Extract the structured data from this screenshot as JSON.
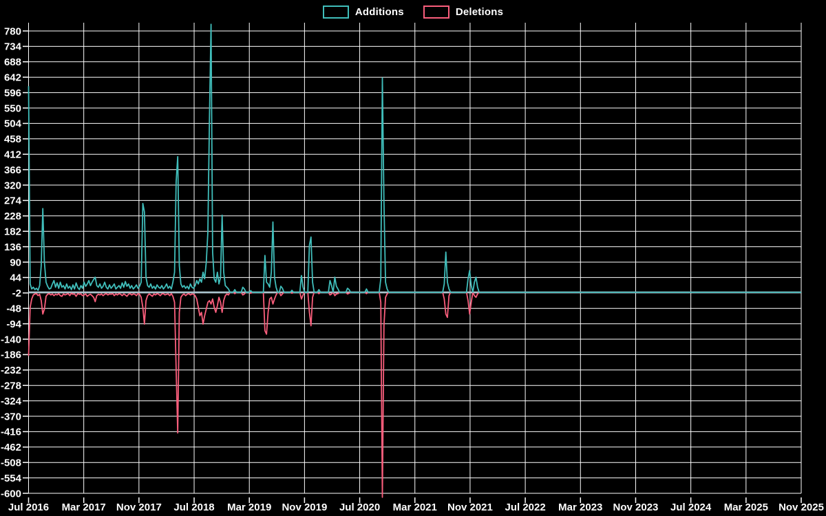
{
  "colors": {
    "background": "#000000",
    "grid": "#ffffff",
    "additions": "#40bebb",
    "deletions": "#fa5e7c",
    "zero_line": "#a9c3cd",
    "text": "#ffffff"
  },
  "legend": {
    "additions_label": "Additions",
    "deletions_label": "Deletions"
  },
  "chart_data": {
    "type": "line",
    "title": "",
    "xlabel": "",
    "ylabel": "",
    "legend_position": "top-center",
    "grid": true,
    "ylim": [
      -612,
      804
    ],
    "y_tick_step": 46,
    "y_ticks": [
      780,
      734,
      688,
      642,
      596,
      550,
      504,
      458,
      412,
      366,
      320,
      274,
      228,
      182,
      136,
      90,
      44,
      -2,
      -48,
      -94,
      -140,
      -186,
      -232,
      -278,
      -324,
      -370,
      -416,
      -462,
      -508,
      -554,
      -600
    ],
    "x_tick_labels": [
      "Jul 2016",
      "Mar 2017",
      "Nov 2017",
      "Jul 2018",
      "Mar 2019",
      "Nov 2019",
      "Jul 2020",
      "Mar 2021",
      "Nov 2021",
      "Jul 2022",
      "Mar 2023",
      "Nov 2023",
      "Jul 2024",
      "Mar 2025",
      "Nov 2025"
    ],
    "x_unit": "weeks since Jul 2016",
    "weeks_total": 488,
    "series": [
      {
        "name": "Additions",
        "color": "#40bebb"
      },
      {
        "name": "Deletions",
        "color": "#fa5e7c"
      }
    ],
    "points_format": "[week_index, additions, deletions]; unlisted weeks are [0,0]; additions clipped at chart top (~800), deletions clipped at chart bottom (~-612)",
    "points": [
      [
        0,
        615,
        -190
      ],
      [
        1,
        25,
        -45
      ],
      [
        2,
        10,
        -20
      ],
      [
        3,
        15,
        -8
      ],
      [
        4,
        8,
        -5
      ],
      [
        5,
        12,
        -4
      ],
      [
        6,
        6,
        -10
      ],
      [
        7,
        20,
        -6
      ],
      [
        8,
        80,
        -25
      ],
      [
        9,
        250,
        -65
      ],
      [
        10,
        90,
        -50
      ],
      [
        11,
        30,
        -12
      ],
      [
        12,
        18,
        -6
      ],
      [
        13,
        10,
        -4
      ],
      [
        14,
        12,
        -8
      ],
      [
        15,
        25,
        -5
      ],
      [
        16,
        35,
        -10
      ],
      [
        17,
        15,
        -6
      ],
      [
        18,
        28,
        -8
      ],
      [
        19,
        12,
        -4
      ],
      [
        20,
        30,
        -10
      ],
      [
        21,
        15,
        -12
      ],
      [
        22,
        20,
        -5
      ],
      [
        23,
        10,
        -8
      ],
      [
        24,
        25,
        -6
      ],
      [
        25,
        12,
        -4
      ],
      [
        26,
        18,
        -10
      ],
      [
        27,
        8,
        -3
      ],
      [
        28,
        22,
        -6
      ],
      [
        29,
        10,
        -5
      ],
      [
        30,
        28,
        -12
      ],
      [
        31,
        14,
        -4
      ],
      [
        32,
        8,
        -6
      ],
      [
        33,
        20,
        -5
      ],
      [
        34,
        12,
        -10
      ],
      [
        35,
        30,
        -8
      ],
      [
        36,
        18,
        -5
      ],
      [
        37,
        25,
        -12
      ],
      [
        38,
        35,
        -8
      ],
      [
        39,
        20,
        -6
      ],
      [
        40,
        30,
        -10
      ],
      [
        41,
        38,
        -15
      ],
      [
        42,
        45,
        -28
      ],
      [
        43,
        20,
        -10
      ],
      [
        44,
        15,
        -6
      ],
      [
        45,
        25,
        -8
      ],
      [
        46,
        12,
        -5
      ],
      [
        47,
        18,
        -10
      ],
      [
        48,
        30,
        -6
      ],
      [
        49,
        15,
        -4
      ],
      [
        50,
        10,
        -8
      ],
      [
        51,
        22,
        -5
      ],
      [
        52,
        12,
        -6
      ],
      [
        53,
        18,
        -4
      ],
      [
        54,
        25,
        -10
      ],
      [
        55,
        10,
        -5
      ],
      [
        56,
        15,
        -8
      ],
      [
        57,
        20,
        -4
      ],
      [
        58,
        12,
        -6
      ],
      [
        59,
        28,
        -10
      ],
      [
        60,
        15,
        -5
      ],
      [
        61,
        32,
        -8
      ],
      [
        62,
        18,
        -12
      ],
      [
        63,
        25,
        -6
      ],
      [
        64,
        12,
        -4
      ],
      [
        65,
        20,
        -8
      ],
      [
        66,
        10,
        -5
      ],
      [
        67,
        15,
        -6
      ],
      [
        68,
        22,
        -10
      ],
      [
        69,
        12,
        -4
      ],
      [
        70,
        18,
        -6
      ],
      [
        71,
        30,
        -15
      ],
      [
        72,
        265,
        -45
      ],
      [
        73,
        240,
        -95
      ],
      [
        74,
        45,
        -25
      ],
      [
        75,
        20,
        -10
      ],
      [
        76,
        15,
        -5
      ],
      [
        77,
        25,
        -8
      ],
      [
        78,
        12,
        -12
      ],
      [
        79,
        18,
        -5
      ],
      [
        80,
        10,
        -8
      ],
      [
        81,
        22,
        -4
      ],
      [
        82,
        15,
        -6
      ],
      [
        83,
        12,
        -10
      ],
      [
        84,
        20,
        -5
      ],
      [
        85,
        10,
        -4
      ],
      [
        86,
        16,
        -8
      ],
      [
        87,
        25,
        -6
      ],
      [
        88,
        12,
        -5
      ],
      [
        89,
        18,
        -10
      ],
      [
        90,
        10,
        -4
      ],
      [
        91,
        30,
        -12
      ],
      [
        92,
        60,
        -30
      ],
      [
        93,
        330,
        -230
      ],
      [
        94,
        405,
        -420
      ],
      [
        95,
        80,
        -60
      ],
      [
        96,
        25,
        -15
      ],
      [
        97,
        15,
        -8
      ],
      [
        98,
        20,
        -5
      ],
      [
        99,
        12,
        -10
      ],
      [
        100,
        18,
        -6
      ],
      [
        101,
        10,
        -4
      ],
      [
        102,
        25,
        -8
      ],
      [
        103,
        15,
        -5
      ],
      [
        104,
        12,
        -6
      ],
      [
        105,
        20,
        -10
      ],
      [
        106,
        35,
        -20
      ],
      [
        107,
        25,
        -45
      ],
      [
        108,
        40,
        -70
      ],
      [
        109,
        30,
        -60
      ],
      [
        110,
        60,
        -95
      ],
      [
        111,
        40,
        -70
      ],
      [
        112,
        90,
        -50
      ],
      [
        113,
        180,
        -30
      ],
      [
        114,
        520,
        -25
      ],
      [
        115,
        800,
        -35
      ],
      [
        116,
        120,
        -20
      ],
      [
        117,
        40,
        -45
      ],
      [
        118,
        30,
        -60
      ],
      [
        119,
        60,
        -40
      ],
      [
        120,
        25,
        -15
      ],
      [
        121,
        45,
        -30
      ],
      [
        122,
        230,
        -60
      ],
      [
        123,
        60,
        -25
      ],
      [
        124,
        20,
        -10
      ],
      [
        125,
        15,
        -5
      ],
      [
        126,
        10,
        -8
      ],
      [
        130,
        8,
        -4
      ],
      [
        135,
        15,
        -8
      ],
      [
        136,
        10,
        -5
      ],
      [
        140,
        5,
        -3
      ],
      [
        149,
        110,
        -115
      ],
      [
        150,
        30,
        -125
      ],
      [
        151,
        25,
        -60
      ],
      [
        152,
        15,
        -20
      ],
      [
        153,
        60,
        -15
      ],
      [
        154,
        210,
        -35
      ],
      [
        155,
        45,
        -20
      ],
      [
        156,
        15,
        -8
      ],
      [
        159,
        18,
        -10
      ],
      [
        160,
        12,
        -5
      ],
      [
        166,
        6,
        -3
      ],
      [
        172,
        50,
        -20
      ],
      [
        173,
        15,
        -8
      ],
      [
        177,
        140,
        -60
      ],
      [
        178,
        165,
        -100
      ],
      [
        179,
        30,
        -15
      ],
      [
        183,
        8,
        -4
      ],
      [
        190,
        35,
        -8
      ],
      [
        191,
        20,
        -5
      ],
      [
        193,
        45,
        -10
      ],
      [
        194,
        18,
        -5
      ],
      [
        195,
        10,
        -4
      ],
      [
        201,
        12,
        -5
      ],
      [
        202,
        8,
        -3
      ],
      [
        213,
        10,
        -4
      ],
      [
        222,
        40,
        -30
      ],
      [
        223,
        640,
        -612
      ],
      [
        224,
        270,
        -100
      ],
      [
        225,
        30,
        -15
      ],
      [
        226,
        10,
        -5
      ],
      [
        262,
        25,
        -20
      ],
      [
        263,
        120,
        -65
      ],
      [
        264,
        30,
        -75
      ],
      [
        265,
        10,
        -10
      ],
      [
        277,
        40,
        -25
      ],
      [
        278,
        65,
        -65
      ],
      [
        279,
        20,
        -30
      ],
      [
        281,
        30,
        -10
      ],
      [
        282,
        45,
        -15
      ],
      [
        283,
        15,
        -5
      ]
    ]
  }
}
